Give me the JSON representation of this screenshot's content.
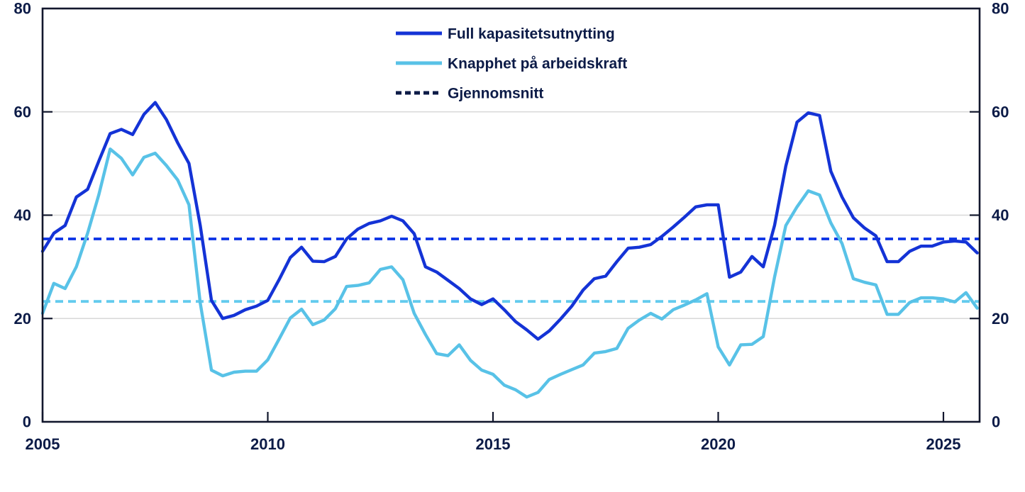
{
  "chart_data": {
    "type": "line",
    "title": "",
    "x_unit": "quarterly",
    "x_start": 2005.0,
    "x_step": 0.25,
    "x_axis": {
      "ticks": [
        2005,
        2010,
        2015,
        2020,
        2025
      ],
      "tick_labels": [
        "2005",
        "2010",
        "2015",
        "2020",
        "2025"
      ],
      "range": [
        2005.0,
        2025.9
      ]
    },
    "y_axis": {
      "ticks": [
        0,
        20,
        40,
        60,
        80
      ],
      "tick_labels": [
        "0",
        "20",
        "40",
        "60",
        "80"
      ],
      "range": [
        0,
        80
      ],
      "sides": "both"
    },
    "grid": {
      "horizontal": [
        20,
        40,
        60
      ],
      "color": "#d8d8d8"
    },
    "series": [
      {
        "name": "Full kapasitetsutnytting",
        "style": "solid",
        "color": "#1433d6",
        "values": [
          33,
          36.5,
          38,
          43.5,
          45,
          50.5,
          55.8,
          56.6,
          55.6,
          59.5,
          61.8,
          58.5,
          54,
          50,
          38,
          23.5,
          20,
          20.6,
          21.7,
          22.4,
          23.5,
          27.5,
          31.8,
          33.8,
          31.1,
          31,
          32,
          35.4,
          37.3,
          38.4,
          38.9,
          39.8,
          38.9,
          36.4,
          30,
          29,
          27.4,
          25.8,
          23.8,
          22.7,
          23.8,
          21.7,
          19.4,
          17.8,
          16,
          17.6,
          19.9,
          22.4,
          25.5,
          27.7,
          28.2,
          31,
          33.6,
          33.8,
          34.3,
          35.9,
          37.7,
          39.6,
          41.6,
          42,
          42,
          28,
          29,
          32,
          30,
          38,
          49.5,
          58,
          59.8,
          59.3,
          48.5,
          43.5,
          39.5,
          37.5,
          36,
          31,
          31,
          33,
          34,
          34,
          34.8,
          35,
          34.8,
          32.7
        ]
      },
      {
        "name": "Knapphet på arbeidskraft",
        "style": "solid",
        "color": "#58c2e7",
        "values": [
          21,
          26.8,
          25.8,
          30,
          36.5,
          44,
          52.8,
          51,
          47.8,
          51.2,
          52,
          49.6,
          46.8,
          42,
          23,
          10,
          8.9,
          9.6,
          9.8,
          9.8,
          12,
          16,
          20.1,
          21.8,
          18.8,
          19.7,
          21.9,
          26.2,
          26.4,
          26.9,
          29.5,
          30,
          27.5,
          21,
          16.9,
          13.2,
          12.8,
          14.9,
          11.9,
          10,
          9.2,
          7.1,
          6.2,
          4.8,
          5.7,
          8.2,
          9.2,
          10.1,
          11,
          13.3,
          13.6,
          14.2,
          18.1,
          19.7,
          21,
          19.9,
          21.7,
          22.6,
          23.6,
          24.8,
          14.5,
          11,
          14.9,
          15,
          16.5,
          28,
          38,
          41.6,
          44.7,
          43.9,
          38.5,
          34.5,
          27.7,
          27,
          26.5,
          20.8,
          20.8,
          23.1,
          24,
          24,
          23.8,
          23.2,
          25,
          22
        ]
      }
    ],
    "average_lines": [
      {
        "name": "Gjennomsnitt full kapasitetsutnytting",
        "value": 35.4,
        "color": "#0a32e6",
        "style": "dashed"
      },
      {
        "name": "Gjennomsnitt knapphet på arbeidskraft",
        "value": 23.3,
        "color": "#63cbee",
        "style": "dashed"
      }
    ],
    "legend": {
      "position": "top-center",
      "items": [
        {
          "label": "Full kapasitetsutnytting",
          "color": "#1433d6",
          "style": "solid"
        },
        {
          "label": "Knapphet på arbeidskraft",
          "color": "#58c2e7",
          "style": "solid"
        },
        {
          "label": "Gjennomsnitt",
          "color": "#0c1b47",
          "style": "dashed"
        }
      ]
    },
    "colors": {
      "frame": "#12172d",
      "grid": "#d8d8d8",
      "text": "#0c1b47",
      "background": "#ffffff"
    }
  }
}
